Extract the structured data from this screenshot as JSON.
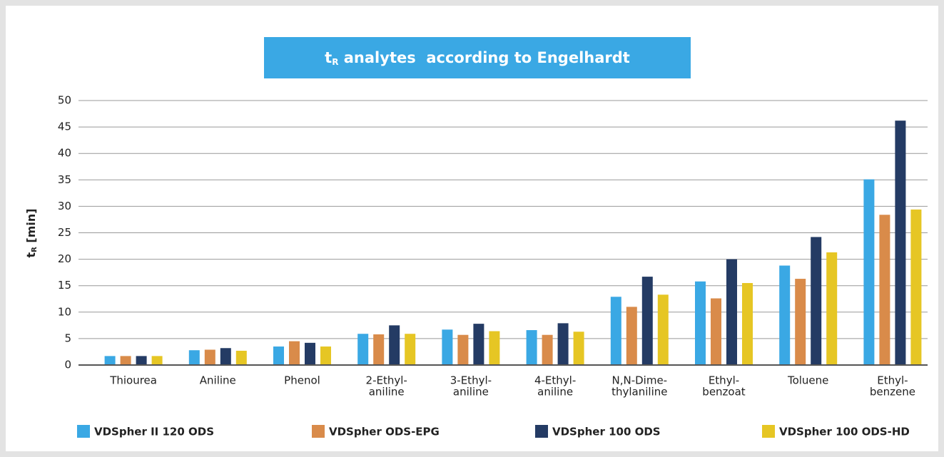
{
  "chart_data": {
    "type": "bar",
    "title": [
      "t",
      "R",
      " analytes  according to Engelhardt"
    ],
    "y_label": [
      "t",
      "R",
      " [min]"
    ],
    "categories": [
      [
        "Thiourea"
      ],
      [
        "Aniline"
      ],
      [
        "Phenol"
      ],
      [
        "2-Ethyl-",
        "aniline"
      ],
      [
        "3-Ethyl-",
        "aniline"
      ],
      [
        "4-Ethyl-",
        "aniline"
      ],
      [
        "N,N-Dime-",
        "thylaniline"
      ],
      [
        "Ethyl-",
        "benzoat"
      ],
      [
        "Toluene"
      ],
      [
        "Ethyl-",
        "benzene"
      ]
    ],
    "series": [
      {
        "name": "VDSpher II 120 ODS",
        "color": "#3aa8e4",
        "values": [
          1.7,
          2.8,
          3.5,
          5.9,
          6.7,
          6.6,
          12.9,
          15.8,
          18.8,
          35.1
        ]
      },
      {
        "name": "VDSpher ODS-EPG",
        "color": "#d98b4a",
        "values": [
          1.7,
          2.9,
          4.5,
          5.8,
          5.7,
          5.7,
          11.0,
          12.6,
          16.3,
          28.4
        ]
      },
      {
        "name": "VDSpher 100 ODS",
        "color": "#243b64",
        "values": [
          1.7,
          3.2,
          4.2,
          7.5,
          7.8,
          7.9,
          16.7,
          20.0,
          24.2,
          46.2
        ]
      },
      {
        "name": "VDSpher 100 ODS-HD",
        "color": "#e6c624",
        "values": [
          1.7,
          2.7,
          3.5,
          5.9,
          6.4,
          6.3,
          13.3,
          15.5,
          21.3,
          29.4
        ]
      }
    ],
    "ylim": [
      0,
      50
    ],
    "yticks": [
      0,
      5,
      10,
      15,
      20,
      25,
      30,
      35,
      40,
      45,
      50
    ],
    "grid": true,
    "legend": "bottom"
  }
}
